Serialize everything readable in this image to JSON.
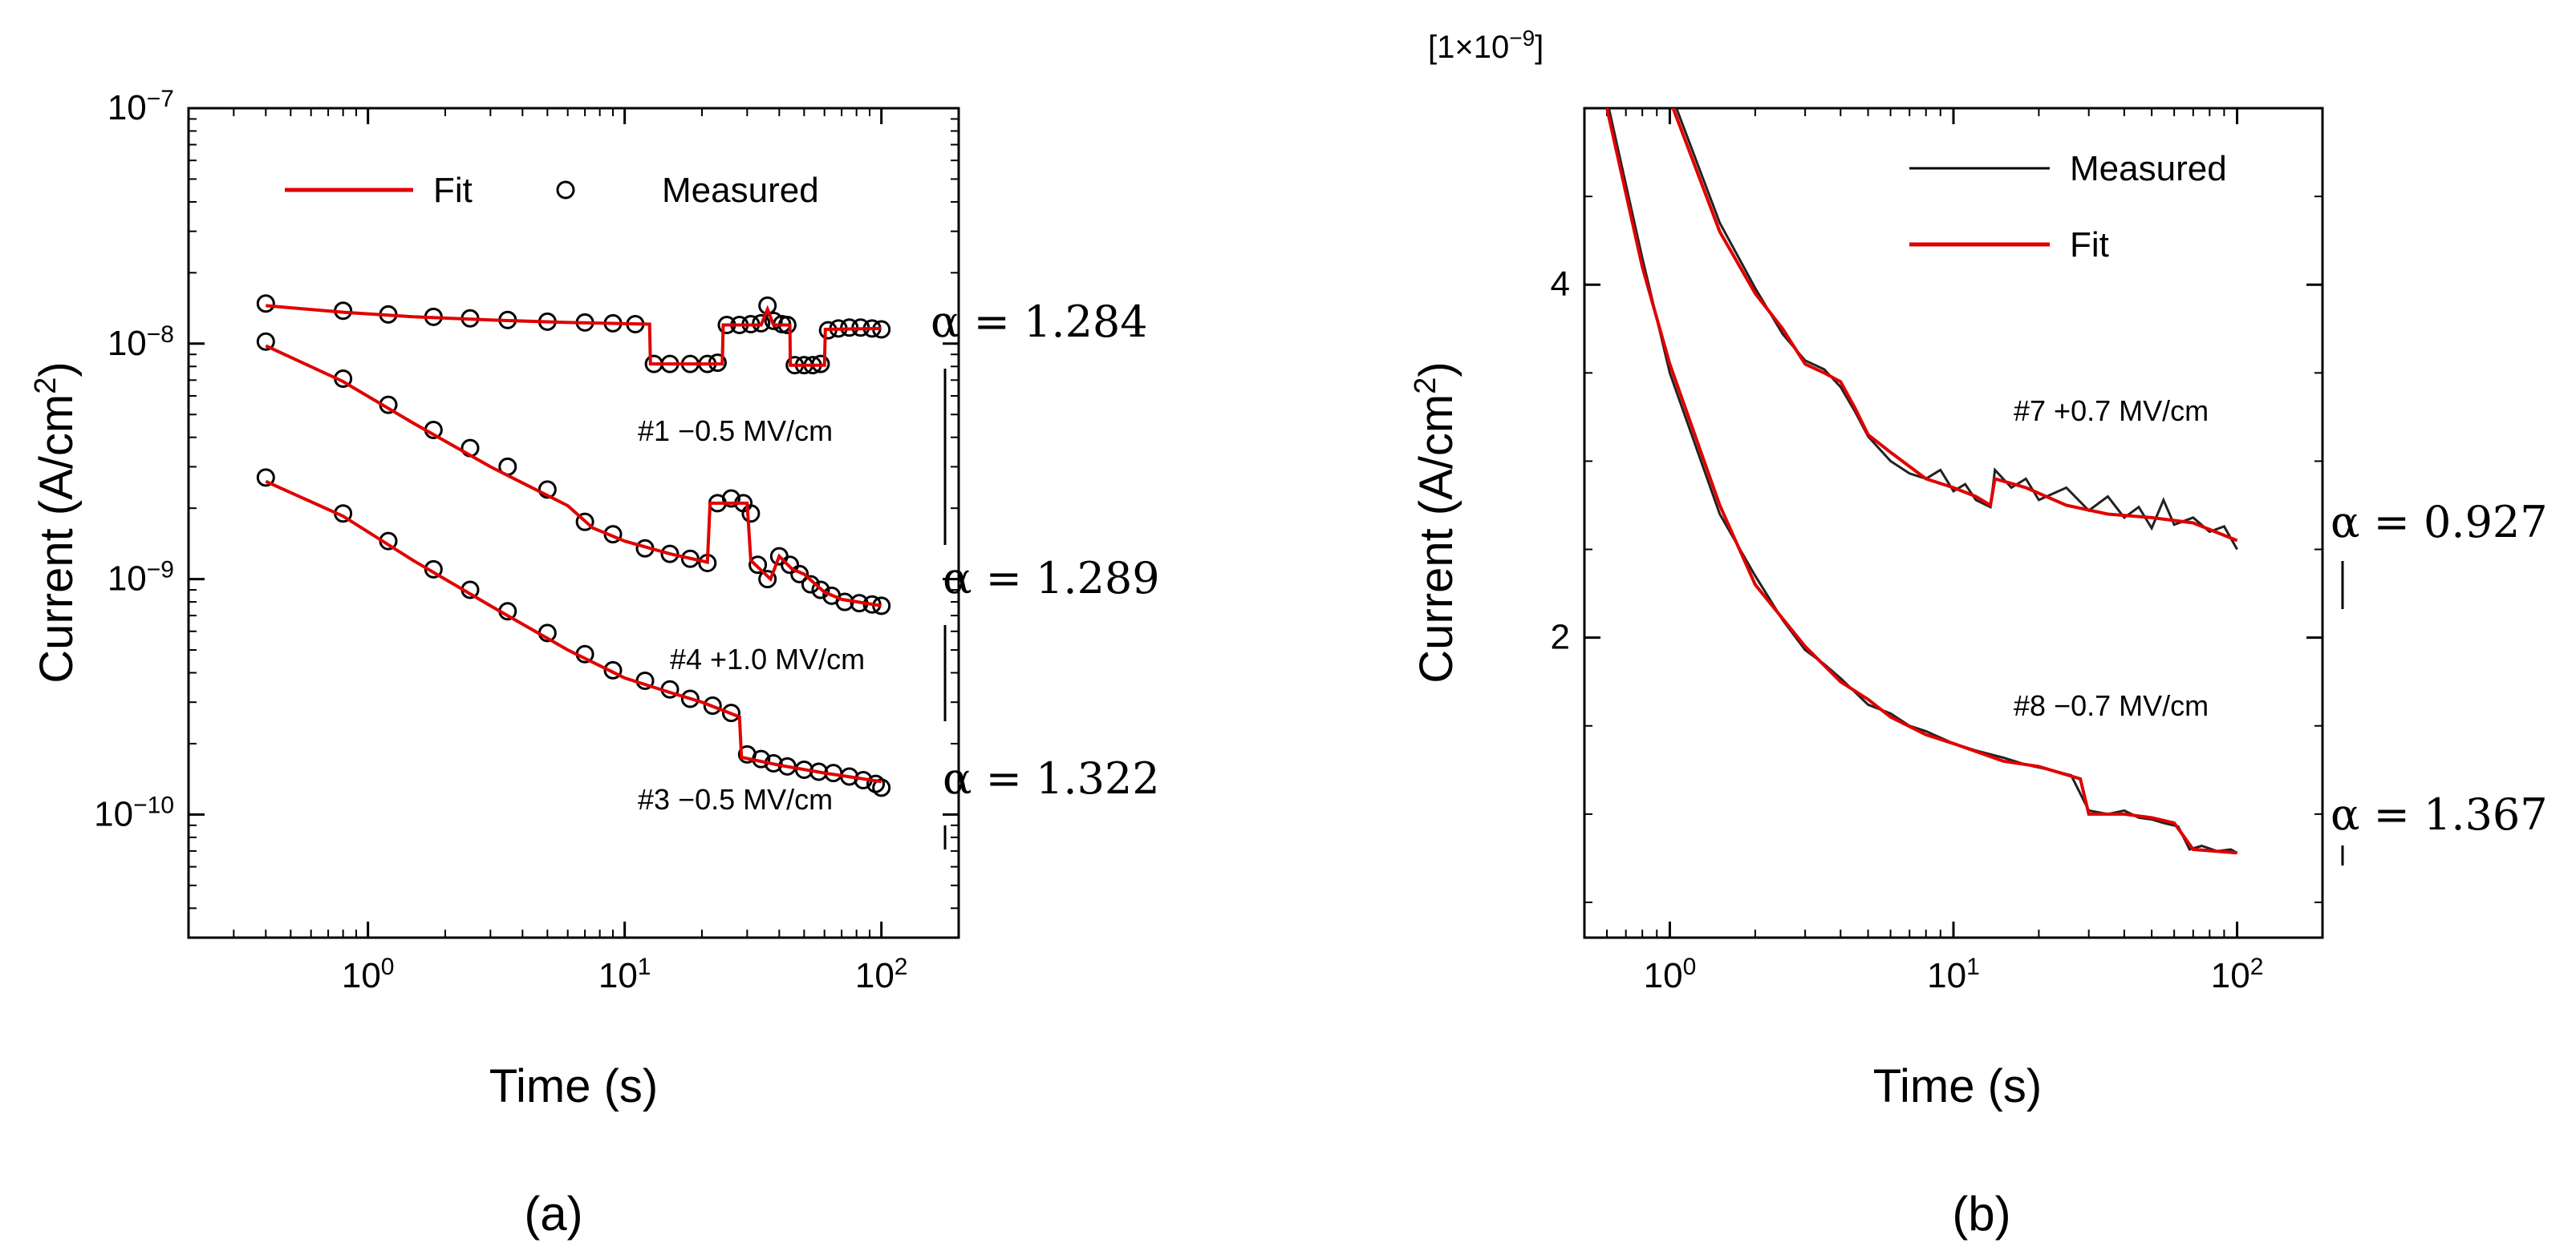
{
  "chart_data": [
    {
      "panel": "a",
      "type": "scatter",
      "caption": "(a)",
      "xlabel": "Time (s)",
      "ylabel_base": "Current (A/cm",
      "ylabel_sup": "2",
      "ylabel_close": ")",
      "x_scale": "log",
      "y_scale": "log",
      "xlim": [
        0.2,
        200
      ],
      "ylim": [
        3e-11,
        1e-07
      ],
      "x_ticks": [
        {
          "value": 1,
          "base": "10",
          "exp": "0"
        },
        {
          "value": 10,
          "base": "10",
          "exp": "1"
        },
        {
          "value": 100,
          "base": "10",
          "exp": "2"
        }
      ],
      "y_ticks": [
        {
          "value": 1e-10,
          "base": "10",
          "exp": "−10"
        },
        {
          "value": 1e-09,
          "base": "10",
          "exp": "−9"
        },
        {
          "value": 1e-08,
          "base": "10",
          "exp": "−8"
        },
        {
          "value": 1e-07,
          "base": "10",
          "exp": "−7"
        }
      ],
      "legend": {
        "placement": "top",
        "entries": [
          {
            "label": "Fit",
            "style": "red-line"
          },
          {
            "label": "Measured",
            "style": "open-circle"
          }
        ]
      },
      "grid": false,
      "series": [
        {
          "label": "#1 −0.5 MV/cm",
          "alpha": "α = 1.284",
          "fit": [
            [
              0.4,
              1.45e-08
            ],
            [
              0.8,
              1.36e-08
            ],
            [
              1.5,
              1.3e-08
            ],
            [
              3,
              1.26e-08
            ],
            [
              6,
              1.23e-08
            ],
            [
              12.5,
              1.21e-08
            ],
            [
              12.6,
              8.2e-09
            ],
            [
              24,
              8.2e-09
            ],
            [
              24.2,
              1.2e-08
            ],
            [
              34,
              1.2e-08
            ],
            [
              36,
              1.4e-08
            ],
            [
              38,
              1.2e-08
            ],
            [
              44,
              1.2e-08
            ],
            [
              44.2,
              8.1e-09
            ],
            [
              60,
              8.1e-09
            ],
            [
              60.5,
              1.15e-08
            ],
            [
              100,
              1.16e-08
            ]
          ],
          "measured": [
            [
              0.4,
              1.48e-08
            ],
            [
              0.8,
              1.38e-08
            ],
            [
              1.2,
              1.33e-08
            ],
            [
              1.8,
              1.3e-08
            ],
            [
              2.5,
              1.28e-08
            ],
            [
              3.5,
              1.26e-08
            ],
            [
              5,
              1.24e-08
            ],
            [
              7,
              1.23e-08
            ],
            [
              9,
              1.22e-08
            ],
            [
              11,
              1.21e-08
            ],
            [
              13,
              8.2e-09
            ],
            [
              15,
              8.2e-09
            ],
            [
              18,
              8.2e-09
            ],
            [
              21,
              8.2e-09
            ],
            [
              23,
              8.3e-09
            ],
            [
              25,
              1.2e-08
            ],
            [
              28,
              1.2e-08
            ],
            [
              31,
              1.21e-08
            ],
            [
              34,
              1.22e-08
            ],
            [
              36,
              1.45e-08
            ],
            [
              38,
              1.25e-08
            ],
            [
              41,
              1.21e-08
            ],
            [
              43,
              1.2e-08
            ],
            [
              46,
              8.1e-09
            ],
            [
              50,
              8.1e-09
            ],
            [
              54,
              8.1e-09
            ],
            [
              58,
              8.2e-09
            ],
            [
              62,
              1.14e-08
            ],
            [
              68,
              1.16e-08
            ],
            [
              75,
              1.17e-08
            ],
            [
              83,
              1.17e-08
            ],
            [
              92,
              1.16e-08
            ],
            [
              100,
              1.15e-08
            ]
          ]
        },
        {
          "label": "#4 +1.0 MV/cm",
          "alpha": "α = 1.289",
          "fit": [
            [
              0.4,
              9.8e-09
            ],
            [
              0.8,
              6.9e-09
            ],
            [
              1.5,
              4.6e-09
            ],
            [
              3,
              3e-09
            ],
            [
              6,
              2.05e-09
            ],
            [
              7.5,
              1.65e-09
            ],
            [
              10,
              1.45e-09
            ],
            [
              15,
              1.28e-09
            ],
            [
              21,
              1.18e-09
            ],
            [
              21.5,
              2.1e-09
            ],
            [
              30,
              2.1e-09
            ],
            [
              31,
              1.2e-09
            ],
            [
              37,
              1e-09
            ],
            [
              40,
              1.25e-09
            ],
            [
              45,
              1.1e-09
            ],
            [
              50,
              1.05e-09
            ],
            [
              60,
              8.8e-10
            ],
            [
              70,
              8.2e-10
            ],
            [
              100,
              7.7e-10
            ]
          ],
          "measured": [
            [
              0.4,
              1.02e-08
            ],
            [
              0.8,
              7.1e-09
            ],
            [
              1.2,
              5.5e-09
            ],
            [
              1.8,
              4.3e-09
            ],
            [
              2.5,
              3.6e-09
            ],
            [
              3.5,
              3e-09
            ],
            [
              5,
              2.4e-09
            ],
            [
              7,
              1.75e-09
            ],
            [
              9,
              1.55e-09
            ],
            [
              12,
              1.35e-09
            ],
            [
              15,
              1.28e-09
            ],
            [
              18,
              1.22e-09
            ],
            [
              21,
              1.17e-09
            ],
            [
              23,
              2.1e-09
            ],
            [
              26,
              2.2e-09
            ],
            [
              29,
              2.1e-09
            ],
            [
              31,
              1.9e-09
            ],
            [
              33,
              1.15e-09
            ],
            [
              36,
              1e-09
            ],
            [
              40,
              1.25e-09
            ],
            [
              44,
              1.15e-09
            ],
            [
              48,
              1.05e-09
            ],
            [
              53,
              9.5e-10
            ],
            [
              58,
              9e-10
            ],
            [
              64,
              8.5e-10
            ],
            [
              72,
              8e-10
            ],
            [
              82,
              7.9e-10
            ],
            [
              92,
              7.8e-10
            ],
            [
              100,
              7.7e-10
            ]
          ]
        },
        {
          "label": "#3 −0.5 MV/cm",
          "alpha": "α = 1.322",
          "fit": [
            [
              0.4,
              2.6e-09
            ],
            [
              0.8,
              1.85e-09
            ],
            [
              1.5,
              1.2e-09
            ],
            [
              3,
              7.7e-10
            ],
            [
              6,
              5e-10
            ],
            [
              10,
              3.8e-10
            ],
            [
              15,
              3.3e-10
            ],
            [
              20,
              3e-10
            ],
            [
              28,
              2.6e-10
            ],
            [
              28.5,
              1.75e-10
            ],
            [
              40,
              1.62e-10
            ],
            [
              60,
              1.5e-10
            ],
            [
              100,
              1.38e-10
            ]
          ],
          "measured": [
            [
              0.4,
              2.7e-09
            ],
            [
              0.8,
              1.9e-09
            ],
            [
              1.2,
              1.45e-09
            ],
            [
              1.8,
              1.1e-09
            ],
            [
              2.5,
              9e-10
            ],
            [
              3.5,
              7.3e-10
            ],
            [
              5,
              5.9e-10
            ],
            [
              7,
              4.8e-10
            ],
            [
              9,
              4.1e-10
            ],
            [
              12,
              3.7e-10
            ],
            [
              15,
              3.4e-10
            ],
            [
              18,
              3.1e-10
            ],
            [
              22,
              2.9e-10
            ],
            [
              26,
              2.7e-10
            ],
            [
              30,
              1.8e-10
            ],
            [
              34,
              1.72e-10
            ],
            [
              38,
              1.65e-10
            ],
            [
              43,
              1.6e-10
            ],
            [
              50,
              1.55e-10
            ],
            [
              57,
              1.52e-10
            ],
            [
              65,
              1.5e-10
            ],
            [
              75,
              1.45e-10
            ],
            [
              85,
              1.4e-10
            ],
            [
              95,
              1.35e-10
            ],
            [
              100,
              1.3e-10
            ]
          ]
        }
      ]
    },
    {
      "panel": "b",
      "type": "line",
      "caption": "(b)",
      "xlabel": "Time (s)",
      "ylabel_base": "Current (A/cm",
      "ylabel_sup": "2",
      "ylabel_close": ")",
      "y_multiplier": "[1×10",
      "y_multiplier_exp": "−9",
      "y_multiplier_close": "]",
      "x_scale": "log",
      "y_scale": "linear",
      "xlim": [
        0.5,
        200
      ],
      "ylim": [
        0.3,
        5.0
      ],
      "x_ticks": [
        {
          "value": 1,
          "base": "10",
          "exp": "0"
        },
        {
          "value": 10,
          "base": "10",
          "exp": "1"
        },
        {
          "value": 100,
          "base": "10",
          "exp": "2"
        }
      ],
      "y_ticks": [
        {
          "value": 2,
          "label": "2"
        },
        {
          "value": 4,
          "label": "4"
        }
      ],
      "legend": {
        "placement": "top-right",
        "entries": [
          {
            "label": "Measured",
            "style": "black-line"
          },
          {
            "label": "Fit",
            "style": "red-line"
          }
        ]
      },
      "grid": false,
      "series": [
        {
          "label": "#7 +0.7 MV/cm",
          "alpha": "α = 0.927",
          "fit": [
            [
              1.0,
              5.05
            ],
            [
              1.5,
              4.3
            ],
            [
              2,
              3.95
            ],
            [
              2.5,
              3.75
            ],
            [
              3,
              3.55
            ],
            [
              3.5,
              3.5
            ],
            [
              4,
              3.45
            ],
            [
              4.5,
              3.3
            ],
            [
              5,
              3.15
            ],
            [
              6,
              3.05
            ],
            [
              8,
              2.9
            ],
            [
              10,
              2.85
            ],
            [
              12,
              2.8
            ],
            [
              13.5,
              2.75
            ],
            [
              14,
              2.9
            ],
            [
              18,
              2.85
            ],
            [
              25,
              2.75
            ],
            [
              35,
              2.7
            ],
            [
              50,
              2.68
            ],
            [
              70,
              2.65
            ],
            [
              100,
              2.55
            ]
          ],
          "measured": [
            [
              1.0,
              5.1
            ],
            [
              1.5,
              4.35
            ],
            [
              2,
              3.98
            ],
            [
              2.5,
              3.72
            ],
            [
              3,
              3.57
            ],
            [
              3.5,
              3.52
            ],
            [
              4,
              3.42
            ],
            [
              4.5,
              3.28
            ],
            [
              5,
              3.14
            ],
            [
              6,
              3.0
            ],
            [
              7,
              2.93
            ],
            [
              8,
              2.9
            ],
            [
              9,
              2.95
            ],
            [
              10,
              2.83
            ],
            [
              11,
              2.87
            ],
            [
              12,
              2.78
            ],
            [
              13.5,
              2.74
            ],
            [
              14,
              2.95
            ],
            [
              16,
              2.85
            ],
            [
              18,
              2.9
            ],
            [
              20,
              2.78
            ],
            [
              25,
              2.85
            ],
            [
              30,
              2.72
            ],
            [
              35,
              2.8
            ],
            [
              40,
              2.68
            ],
            [
              45,
              2.74
            ],
            [
              50,
              2.62
            ],
            [
              55,
              2.78
            ],
            [
              60,
              2.64
            ],
            [
              70,
              2.68
            ],
            [
              80,
              2.6
            ],
            [
              90,
              2.63
            ],
            [
              100,
              2.5
            ]
          ]
        },
        {
          "label": "#8 −0.7 MV/cm",
          "alpha": "α = 1.367",
          "fit": [
            [
              0.6,
              5.0
            ],
            [
              0.8,
              4.1
            ],
            [
              1.0,
              3.55
            ],
            [
              1.5,
              2.75
            ],
            [
              2,
              2.3
            ],
            [
              3,
              1.95
            ],
            [
              4,
              1.75
            ],
            [
              5,
              1.65
            ],
            [
              6,
              1.55
            ],
            [
              8,
              1.45
            ],
            [
              10,
              1.4
            ],
            [
              15,
              1.3
            ],
            [
              20,
              1.27
            ],
            [
              28,
              1.2
            ],
            [
              30,
              1.0
            ],
            [
              40,
              1.0
            ],
            [
              50,
              0.98
            ],
            [
              60,
              0.95
            ],
            [
              70,
              0.8
            ],
            [
              100,
              0.78
            ]
          ],
          "measured": [
            [
              0.6,
              5.05
            ],
            [
              0.8,
              4.15
            ],
            [
              1.0,
              3.5
            ],
            [
              1.5,
              2.7
            ],
            [
              2,
              2.35
            ],
            [
              2.5,
              2.1
            ],
            [
              3,
              1.93
            ],
            [
              3.5,
              1.85
            ],
            [
              4,
              1.77
            ],
            [
              5,
              1.62
            ],
            [
              6,
              1.57
            ],
            [
              7,
              1.5
            ],
            [
              8,
              1.47
            ],
            [
              10,
              1.4
            ],
            [
              12,
              1.36
            ],
            [
              15,
              1.32
            ],
            [
              18,
              1.28
            ],
            [
              22,
              1.25
            ],
            [
              26,
              1.22
            ],
            [
              30,
              1.02
            ],
            [
              35,
              1.0
            ],
            [
              40,
              1.02
            ],
            [
              45,
              0.98
            ],
            [
              50,
              0.97
            ],
            [
              55,
              0.95
            ],
            [
              62,
              0.93
            ],
            [
              68,
              0.8
            ],
            [
              75,
              0.82
            ],
            [
              85,
              0.79
            ],
            [
              95,
              0.8
            ],
            [
              100,
              0.78
            ]
          ]
        }
      ]
    }
  ],
  "colors": {
    "fit": "#e00000",
    "measured_a": "#000000",
    "measured_b": "#222222",
    "axis": "#000000"
  }
}
